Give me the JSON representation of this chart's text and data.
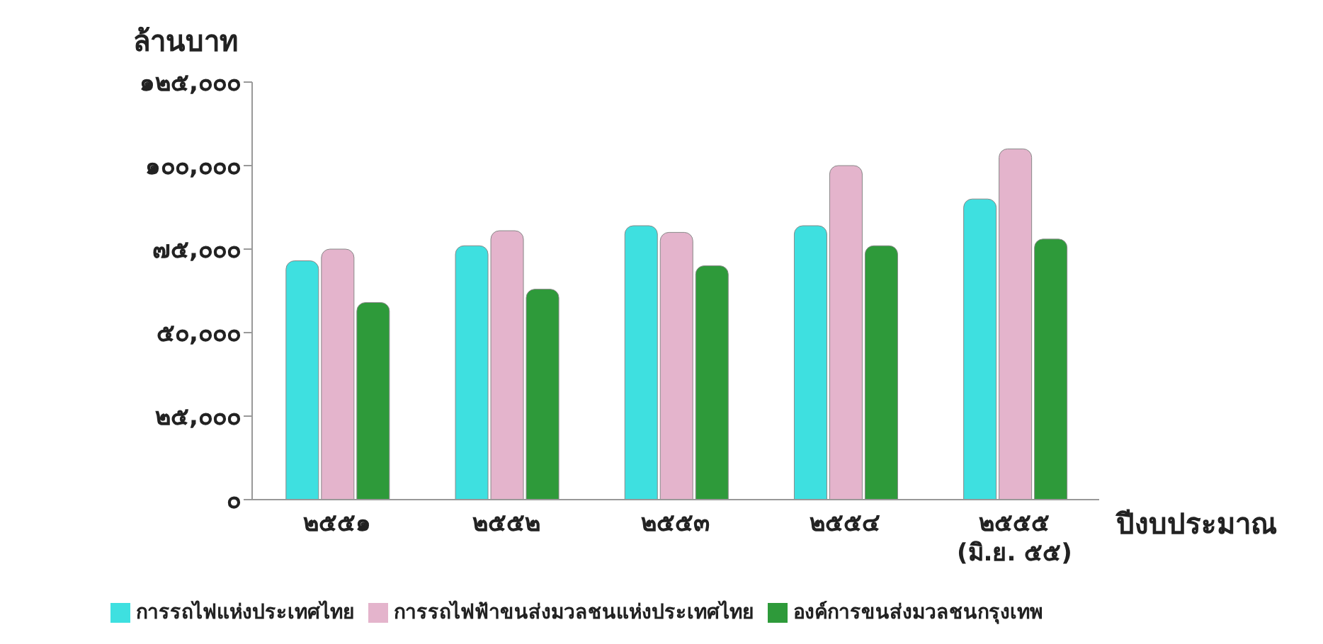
{
  "chart_data": {
    "type": "bar",
    "ylabel": "ล้านบาท",
    "xlabel": "ปีงบประมาณ",
    "categories": [
      "๒๕๕๑",
      "๒๕๕๒",
      "๒๕๕๓",
      "๒๕๕๔",
      "๒๕๕๕\n(มิ.ย. ๕๕)"
    ],
    "series": [
      {
        "name": "การรถไฟแห่งประเทศไทย",
        "color": "#3ee0e0",
        "values": [
          71500,
          76000,
          82000,
          82000,
          90000
        ]
      },
      {
        "name": "การรถไฟฟ้าขนส่งมวลชนแห่งประเทศไทย",
        "color": "#e4b4cc",
        "values": [
          75000,
          80500,
          80000,
          100000,
          105000
        ]
      },
      {
        "name": "องค์การขนส่งมวลชนกรุงเทพ",
        "color": "#2e9a3a",
        "values": [
          59000,
          63000,
          70000,
          76000,
          78000
        ]
      }
    ],
    "ylim": [
      0,
      125000
    ],
    "yticks": [
      {
        "value": 0,
        "label": "๐"
      },
      {
        "value": 25000,
        "label": "๒๕,๐๐๐"
      },
      {
        "value": 50000,
        "label": "๕๐,๐๐๐"
      },
      {
        "value": 75000,
        "label": "๗๕,๐๐๐"
      },
      {
        "value": 100000,
        "label": "๑๐๐,๐๐๐"
      },
      {
        "value": 125000,
        "label": "๑๒๕,๐๐๐"
      }
    ],
    "legend": "bottom",
    "grid": false
  }
}
